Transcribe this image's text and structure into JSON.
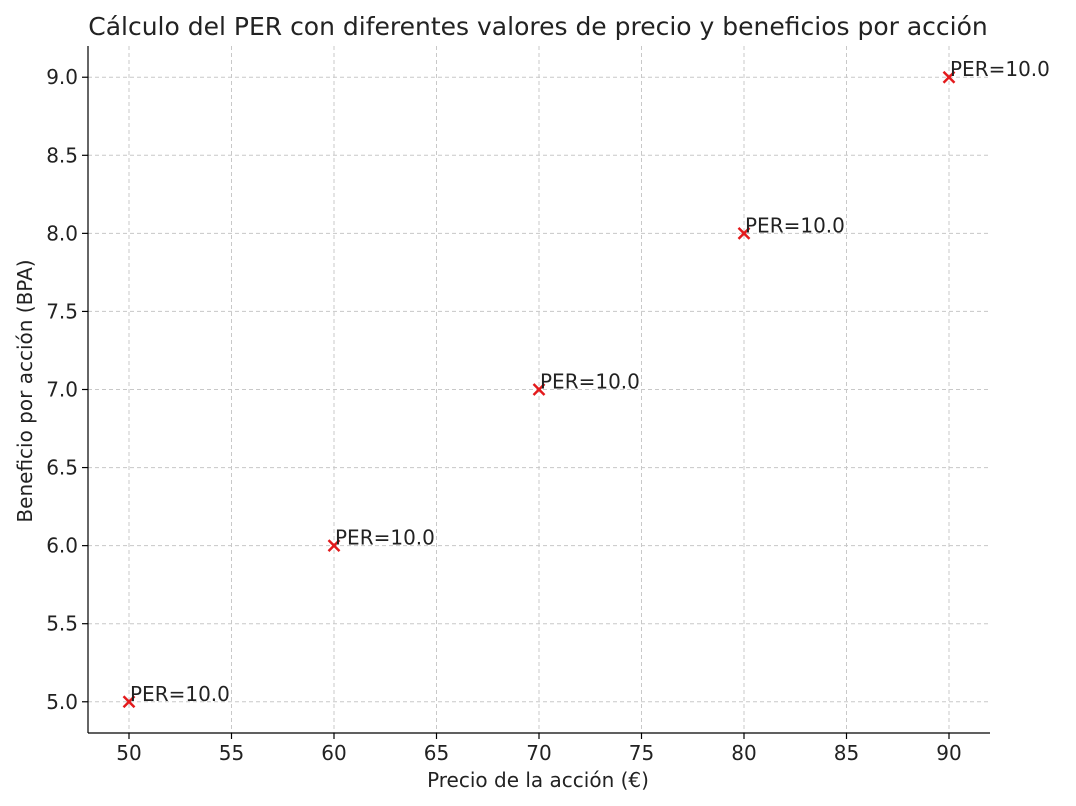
{
  "chart_data": {
    "type": "scatter",
    "title": "Cálculo del PER con diferentes valores de precio y beneficios por acción",
    "xlabel": "Precio de la acción (€)",
    "ylabel": "Beneficio por acción (BPA)",
    "xlim": [
      48,
      92
    ],
    "ylim": [
      4.8,
      9.2
    ],
    "x_ticks": [
      50,
      55,
      60,
      65,
      70,
      75,
      80,
      85,
      90
    ],
    "y_ticks": [
      5.0,
      5.5,
      6.0,
      6.5,
      7.0,
      7.5,
      8.0,
      8.5,
      9.0
    ],
    "grid": true,
    "marker": "x",
    "marker_color": "#e31a1c",
    "series": [
      {
        "x": [
          50,
          60,
          70,
          80,
          90
        ],
        "y": [
          5.0,
          6.0,
          7.0,
          8.0,
          9.0
        ],
        "labels": [
          "PER=10.0",
          "PER=10.0",
          "PER=10.0",
          "PER=10.0",
          "PER=10.0"
        ]
      }
    ]
  }
}
